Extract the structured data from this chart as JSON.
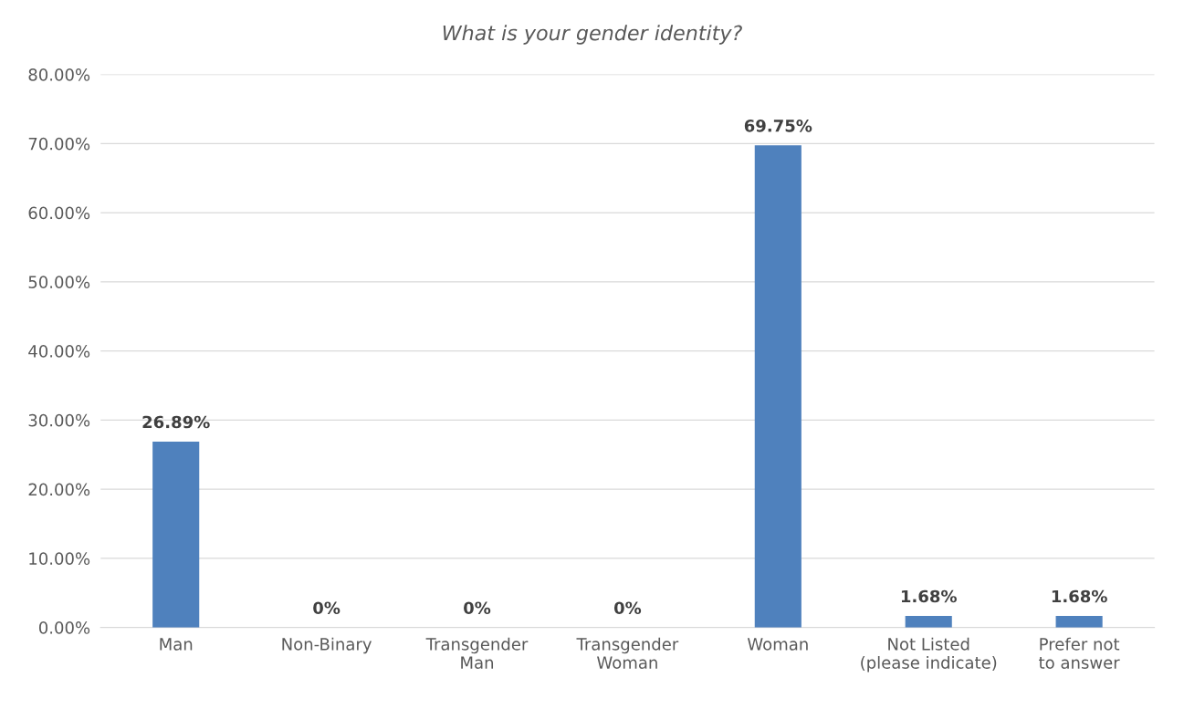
{
  "chart_data": {
    "type": "bar",
    "title": "What is your gender identity?",
    "categories": [
      "Man",
      "Non-Binary",
      "Transgender\nMan",
      "Transgender\nWoman",
      "Woman",
      "Not Listed\n(please indicate)",
      "Prefer not\nto answer"
    ],
    "values": [
      26.89,
      0,
      0,
      0,
      69.75,
      1.68,
      1.68
    ],
    "value_labels": [
      "26.89%",
      "0%",
      "0%",
      "0%",
      "69.75%",
      "1.68%",
      "1.68%"
    ],
    "color": "#4f81bd",
    "ylim": [
      0,
      80
    ],
    "yticks": [
      {
        "value": 0,
        "label": "0.00%"
      },
      {
        "value": 10,
        "label": "10.00%"
      },
      {
        "value": 20,
        "label": "20.00%"
      },
      {
        "value": 30,
        "label": "30.00%"
      },
      {
        "value": 40,
        "label": "40.00%"
      },
      {
        "value": 50,
        "label": "50.00%"
      },
      {
        "value": 60,
        "label": "60.00%"
      },
      {
        "value": 70,
        "label": "70.00%"
      },
      {
        "value": 80,
        "label": "80.00%"
      }
    ],
    "grid": "y",
    "legend": false
  }
}
